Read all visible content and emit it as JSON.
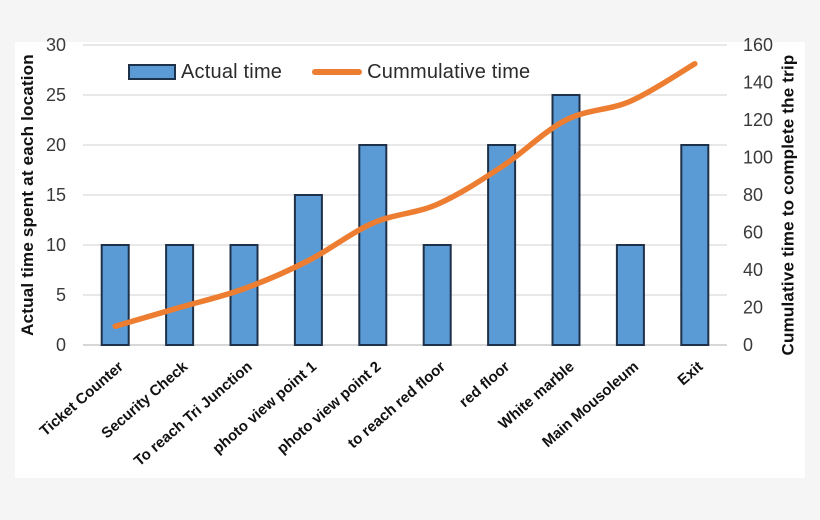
{
  "page": {
    "background_color": "#F5F5F6",
    "card_color": "#FFFFFF",
    "gridline_color": "#D9D9D9",
    "axis_line_color": "#BFBFBF",
    "tick_text_color": "#3a3a3a",
    "category_text_color": "#111111"
  },
  "chart_data": {
    "type": "combo bar+line",
    "title": "",
    "categories": [
      "Ticket Counter",
      "Security Check",
      "To reach Tri Junction",
      "photo view point 1",
      "photo view point 2",
      "to reach red floor",
      "red floor",
      "White marble",
      "Main Mousoleum",
      "Exit"
    ],
    "series": [
      {
        "name": "Actual time",
        "type": "bar",
        "axis": "left",
        "color": "#5B9BD5",
        "border_color": "#1F3049",
        "values": [
          10,
          10,
          10,
          15,
          20,
          10,
          20,
          25,
          10,
          20
        ]
      },
      {
        "name": "Cummulative time",
        "type": "line",
        "axis": "right",
        "color": "#ED7D31",
        "values": [
          10,
          20,
          30,
          45,
          65,
          75,
          95,
          120,
          130,
          150
        ]
      }
    ],
    "left_axis": {
      "label": "Actual time spent at each location",
      "min": 0,
      "max": 30,
      "ticks": [
        0,
        5,
        10,
        15,
        20,
        25,
        30
      ]
    },
    "right_axis": {
      "label": "Cumulative time to complete the trip",
      "min": 0,
      "max": 160,
      "ticks": [
        0,
        20,
        40,
        60,
        80,
        100,
        120,
        140,
        160
      ]
    },
    "grid": "horizontal gridlines on",
    "legend_position": "top"
  }
}
